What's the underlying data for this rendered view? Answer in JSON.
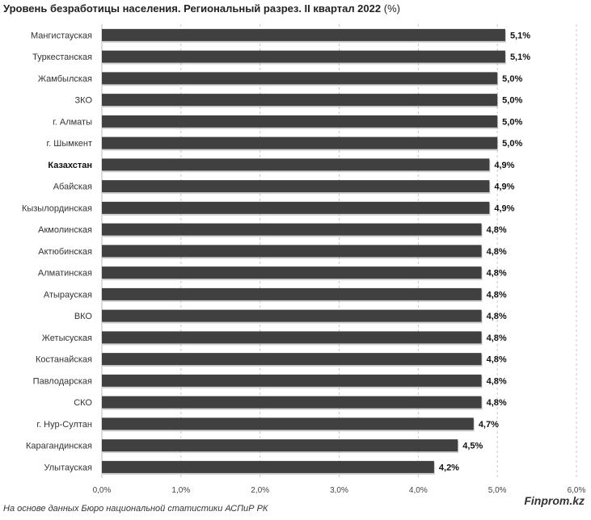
{
  "chart_data": {
    "type": "bar",
    "orientation": "horizontal",
    "title": "Уровень безработицы населения. Региональный разрез. II квартал 2022",
    "title_unit": "(%)",
    "categories": [
      "Мангистауская",
      "Туркестанская",
      "Жамбылская",
      "ЗКО",
      "г. Алматы",
      "г. Шымкент",
      "Казахстан",
      "Абайская",
      "Кызылординская",
      "Акмолинская",
      "Актюбинская",
      "Алматинская",
      "Атырауская",
      "ВКО",
      "Жетысуская",
      "Костанайская",
      "Павлодарская",
      "СКО",
      "г. Нур-Султан",
      "Карагандинская",
      "Улытауская"
    ],
    "values": [
      5.1,
      5.1,
      5.0,
      5.0,
      5.0,
      5.0,
      4.9,
      4.9,
      4.9,
      4.8,
      4.8,
      4.8,
      4.8,
      4.8,
      4.8,
      4.8,
      4.8,
      4.8,
      4.7,
      4.5,
      4.2
    ],
    "value_labels": [
      "5,1%",
      "5,1%",
      "5,0%",
      "5,0%",
      "5,0%",
      "5,0%",
      "4,9%",
      "4,9%",
      "4,9%",
      "4,8%",
      "4,8%",
      "4,8%",
      "4,8%",
      "4,8%",
      "4,8%",
      "4,8%",
      "4,8%",
      "4,8%",
      "4,7%",
      "4,5%",
      "4,2%"
    ],
    "highlight_category": "Казахстан",
    "xlim": [
      0,
      6
    ],
    "xticks": [
      0,
      1,
      2,
      3,
      4,
      5,
      6
    ],
    "xtick_labels": [
      "0,0%",
      "1,0%",
      "2,0%",
      "3,0%",
      "4,0%",
      "5,0%",
      "6,0%"
    ],
    "grid": "vertical-dashed",
    "bar_color": "#404040"
  },
  "footer": {
    "source": "На основе данных Бюро национальной статистики АСПиР РК",
    "brand": "Finprom.kz"
  }
}
